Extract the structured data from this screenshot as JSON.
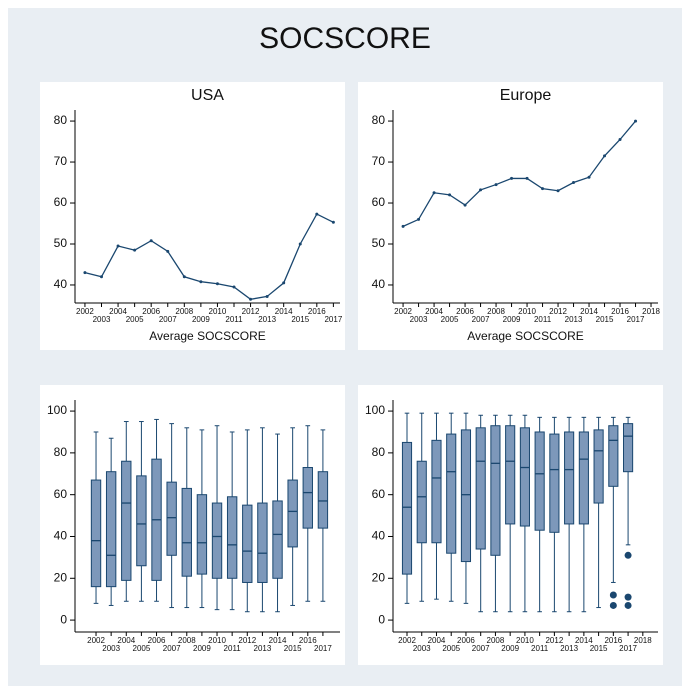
{
  "title": "SOCSCORE",
  "chart_data": [
    {
      "type": "line",
      "title": "USA",
      "xlabel": "Average SOCSCORE",
      "color": "#1a476f",
      "x": [
        2002,
        2003,
        2004,
        2005,
        2006,
        2007,
        2008,
        2009,
        2010,
        2011,
        2012,
        2013,
        2014,
        2015,
        2016,
        2017
      ],
      "values": [
        43,
        42,
        49.5,
        48.5,
        50.8,
        48.2,
        42,
        40.8,
        40.3,
        39.5,
        36.5,
        37.2,
        40.5,
        50,
        57.3,
        55.3
      ],
      "xlim": [
        2001.4,
        2017.4
      ],
      "ylim": [
        35.6,
        82.7
      ],
      "xticks": [
        2002,
        2003,
        2004,
        2005,
        2006,
        2007,
        2008,
        2009,
        2010,
        2011,
        2012,
        2013,
        2014,
        2015,
        2016,
        2017
      ],
      "yticks": [
        40,
        50,
        60,
        70,
        80
      ]
    },
    {
      "type": "line",
      "title": "Europe",
      "xlabel": "Average SOCSCORE",
      "color": "#1a476f",
      "x": [
        2002,
        2003,
        2004,
        2005,
        2006,
        2007,
        2008,
        2009,
        2010,
        2011,
        2012,
        2013,
        2014,
        2015,
        2016,
        2017
      ],
      "values": [
        54.3,
        56,
        62.5,
        62,
        59.5,
        63.2,
        64.5,
        66,
        66,
        63.5,
        63,
        65,
        66.3,
        71.5,
        75.5,
        80
      ],
      "xlim": [
        2001.35,
        2018.45
      ],
      "ylim": [
        35.6,
        82.7
      ],
      "xticks": [
        2002,
        2003,
        2004,
        2005,
        2006,
        2007,
        2008,
        2009,
        2010,
        2011,
        2012,
        2013,
        2014,
        2015,
        2016,
        2017,
        2018
      ],
      "yticks": [
        40,
        50,
        60,
        70,
        80
      ]
    },
    {
      "type": "box",
      "color": "#7d98ba",
      "x": [
        2002,
        2003,
        2004,
        2005,
        2006,
        2007,
        2008,
        2009,
        2010,
        2011,
        2012,
        2013,
        2014,
        2015,
        2016,
        2017
      ],
      "boxes": [
        {
          "low": 8,
          "q1": 16,
          "median": 38,
          "q3": 67,
          "high": 90
        },
        {
          "low": 7,
          "q1": 16,
          "median": 31,
          "q3": 71,
          "high": 87
        },
        {
          "low": 9,
          "q1": 19,
          "median": 56,
          "q3": 76,
          "high": 95
        },
        {
          "low": 9,
          "q1": 26,
          "median": 46,
          "q3": 69,
          "high": 95
        },
        {
          "low": 9,
          "q1": 19,
          "median": 48,
          "q3": 77,
          "high": 96
        },
        {
          "low": 6,
          "q1": 31,
          "median": 49,
          "q3": 66,
          "high": 94
        },
        {
          "low": 6,
          "q1": 21,
          "median": 37,
          "q3": 63,
          "high": 92
        },
        {
          "low": 6,
          "q1": 22,
          "median": 37,
          "q3": 60,
          "high": 91
        },
        {
          "low": 5,
          "q1": 20,
          "median": 40,
          "q3": 56,
          "high": 93
        },
        {
          "low": 5,
          "q1": 20,
          "median": 36,
          "q3": 59,
          "high": 90
        },
        {
          "low": 4,
          "q1": 18,
          "median": 33,
          "q3": 55,
          "high": 91
        },
        {
          "low": 4,
          "q1": 18,
          "median": 32,
          "q3": 56,
          "high": 92
        },
        {
          "low": 4,
          "q1": 20,
          "median": 41,
          "q3": 57,
          "high": 89
        },
        {
          "low": 7,
          "q1": 35,
          "median": 52,
          "q3": 67,
          "high": 92
        },
        {
          "low": 9,
          "q1": 44,
          "median": 61,
          "q3": 73,
          "high": 93
        },
        {
          "low": 9,
          "q1": 44,
          "median": 57,
          "q3": 71,
          "high": 91
        }
      ],
      "xlim": [
        2000.61,
        2018.13
      ],
      "ylim": [
        -5.7,
        105.3
      ],
      "xticks": [
        2002,
        2003,
        2004,
        2005,
        2006,
        2007,
        2008,
        2009,
        2010,
        2011,
        2012,
        2013,
        2014,
        2015,
        2016,
        2017
      ],
      "yticks": [
        0,
        20,
        40,
        60,
        80,
        100
      ]
    },
    {
      "type": "box",
      "color": "#7d98ba",
      "x": [
        2002,
        2003,
        2004,
        2005,
        2006,
        2007,
        2008,
        2009,
        2010,
        2011,
        2012,
        2013,
        2014,
        2015,
        2016,
        2017
      ],
      "boxes": [
        {
          "low": 8,
          "q1": 22,
          "median": 54,
          "q3": 85,
          "high": 99
        },
        {
          "low": 9,
          "q1": 37,
          "median": 59,
          "q3": 76,
          "high": 99
        },
        {
          "low": 10,
          "q1": 37,
          "median": 68,
          "q3": 86,
          "high": 99
        },
        {
          "low": 9,
          "q1": 32,
          "median": 71,
          "q3": 89,
          "high": 99
        },
        {
          "low": 8,
          "q1": 28,
          "median": 60,
          "q3": 91,
          "high": 99
        },
        {
          "low": 4,
          "q1": 34,
          "median": 76,
          "q3": 92,
          "high": 98
        },
        {
          "low": 4,
          "q1": 31,
          "median": 75,
          "q3": 93,
          "high": 98
        },
        {
          "low": 4,
          "q1": 46,
          "median": 76,
          "q3": 93,
          "high": 98
        },
        {
          "low": 4,
          "q1": 45,
          "median": 73,
          "q3": 92,
          "high": 98
        },
        {
          "low": 4,
          "q1": 43,
          "median": 70,
          "q3": 90,
          "high": 97
        },
        {
          "low": 4,
          "q1": 42,
          "median": 72,
          "q3": 89,
          "high": 97
        },
        {
          "low": 4,
          "q1": 46,
          "median": 72,
          "q3": 90,
          "high": 97
        },
        {
          "low": 4,
          "q1": 46,
          "median": 77,
          "q3": 90,
          "high": 97
        },
        {
          "low": 6,
          "q1": 56,
          "median": 81,
          "q3": 91,
          "high": 97
        },
        {
          "low": 18,
          "q1": 64,
          "median": 86,
          "q3": 93,
          "high": 97,
          "outliers": [
            12,
            7
          ]
        },
        {
          "low": 36,
          "q1": 71,
          "median": 88,
          "q3": 94,
          "high": 97,
          "outliers": [
            31,
            11,
            7
          ]
        }
      ],
      "xlim": [
        2001.05,
        2019.03
      ],
      "ylim": [
        -5.7,
        105.3
      ],
      "xticks": [
        2002,
        2003,
        2004,
        2005,
        2006,
        2007,
        2008,
        2009,
        2010,
        2011,
        2012,
        2013,
        2014,
        2015,
        2016,
        2017,
        2018
      ],
      "yticks": [
        0,
        20,
        40,
        60,
        80,
        100
      ]
    }
  ]
}
